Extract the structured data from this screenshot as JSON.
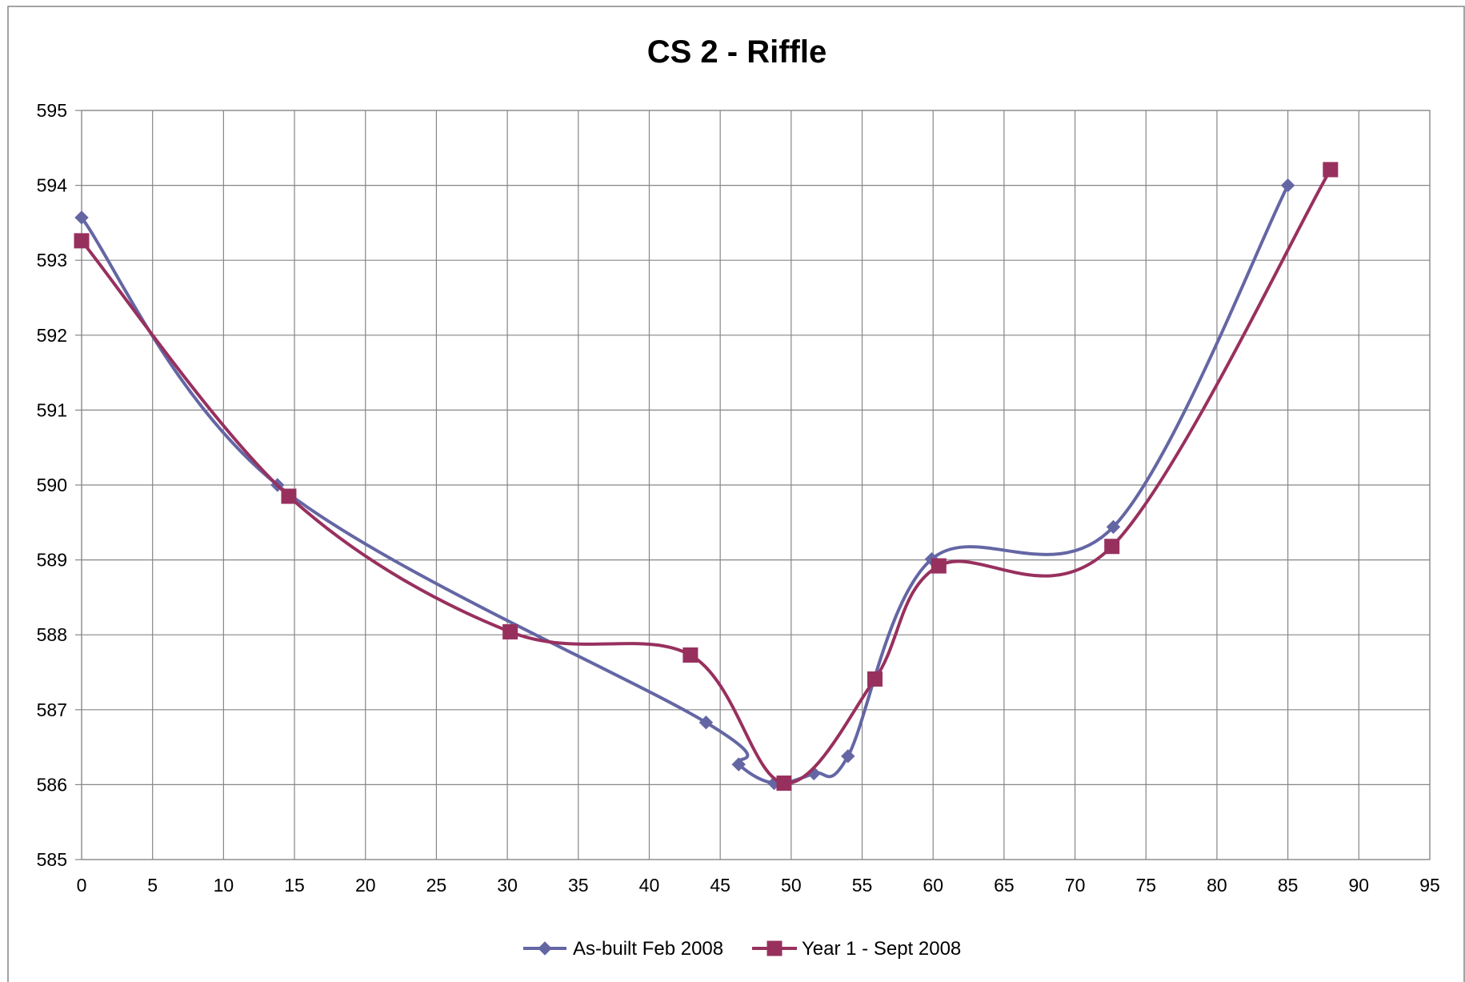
{
  "chart_data": {
    "type": "line",
    "title": "CS 2 - Riffle",
    "xlabel": "",
    "ylabel": "",
    "xlim": [
      0,
      95
    ],
    "ylim": [
      585,
      595
    ],
    "x_ticks": [
      0,
      5,
      10,
      15,
      20,
      25,
      30,
      35,
      40,
      45,
      50,
      55,
      60,
      65,
      70,
      75,
      80,
      85,
      90,
      95
    ],
    "y_ticks": [
      585,
      586,
      587,
      588,
      589,
      590,
      591,
      592,
      593,
      594,
      595
    ],
    "grid": true,
    "smoothed": true,
    "legend_position": "bottom",
    "series": [
      {
        "name": "As-built Feb 2008",
        "color": "#6466a4",
        "marker": "diamond",
        "points": [
          [
            0,
            593.57
          ],
          [
            13.8,
            590.0
          ],
          [
            44.0,
            586.83
          ],
          [
            46.3,
            586.27
          ],
          [
            48.8,
            586.02
          ],
          [
            51.6,
            586.15
          ],
          [
            54.0,
            586.38
          ],
          [
            59.9,
            589.01
          ],
          [
            72.7,
            589.44
          ],
          [
            85.0,
            594.0
          ]
        ]
      },
      {
        "name": "Year 1 - Sept 2008",
        "color": "#98305e",
        "marker": "square",
        "points": [
          [
            0,
            593.26
          ],
          [
            14.6,
            589.85
          ],
          [
            30.2,
            588.04
          ],
          [
            42.9,
            587.73
          ],
          [
            49.5,
            586.02
          ],
          [
            55.9,
            587.41
          ],
          [
            60.4,
            588.92
          ],
          [
            72.6,
            589.18
          ],
          [
            88.0,
            594.21
          ]
        ]
      }
    ]
  }
}
